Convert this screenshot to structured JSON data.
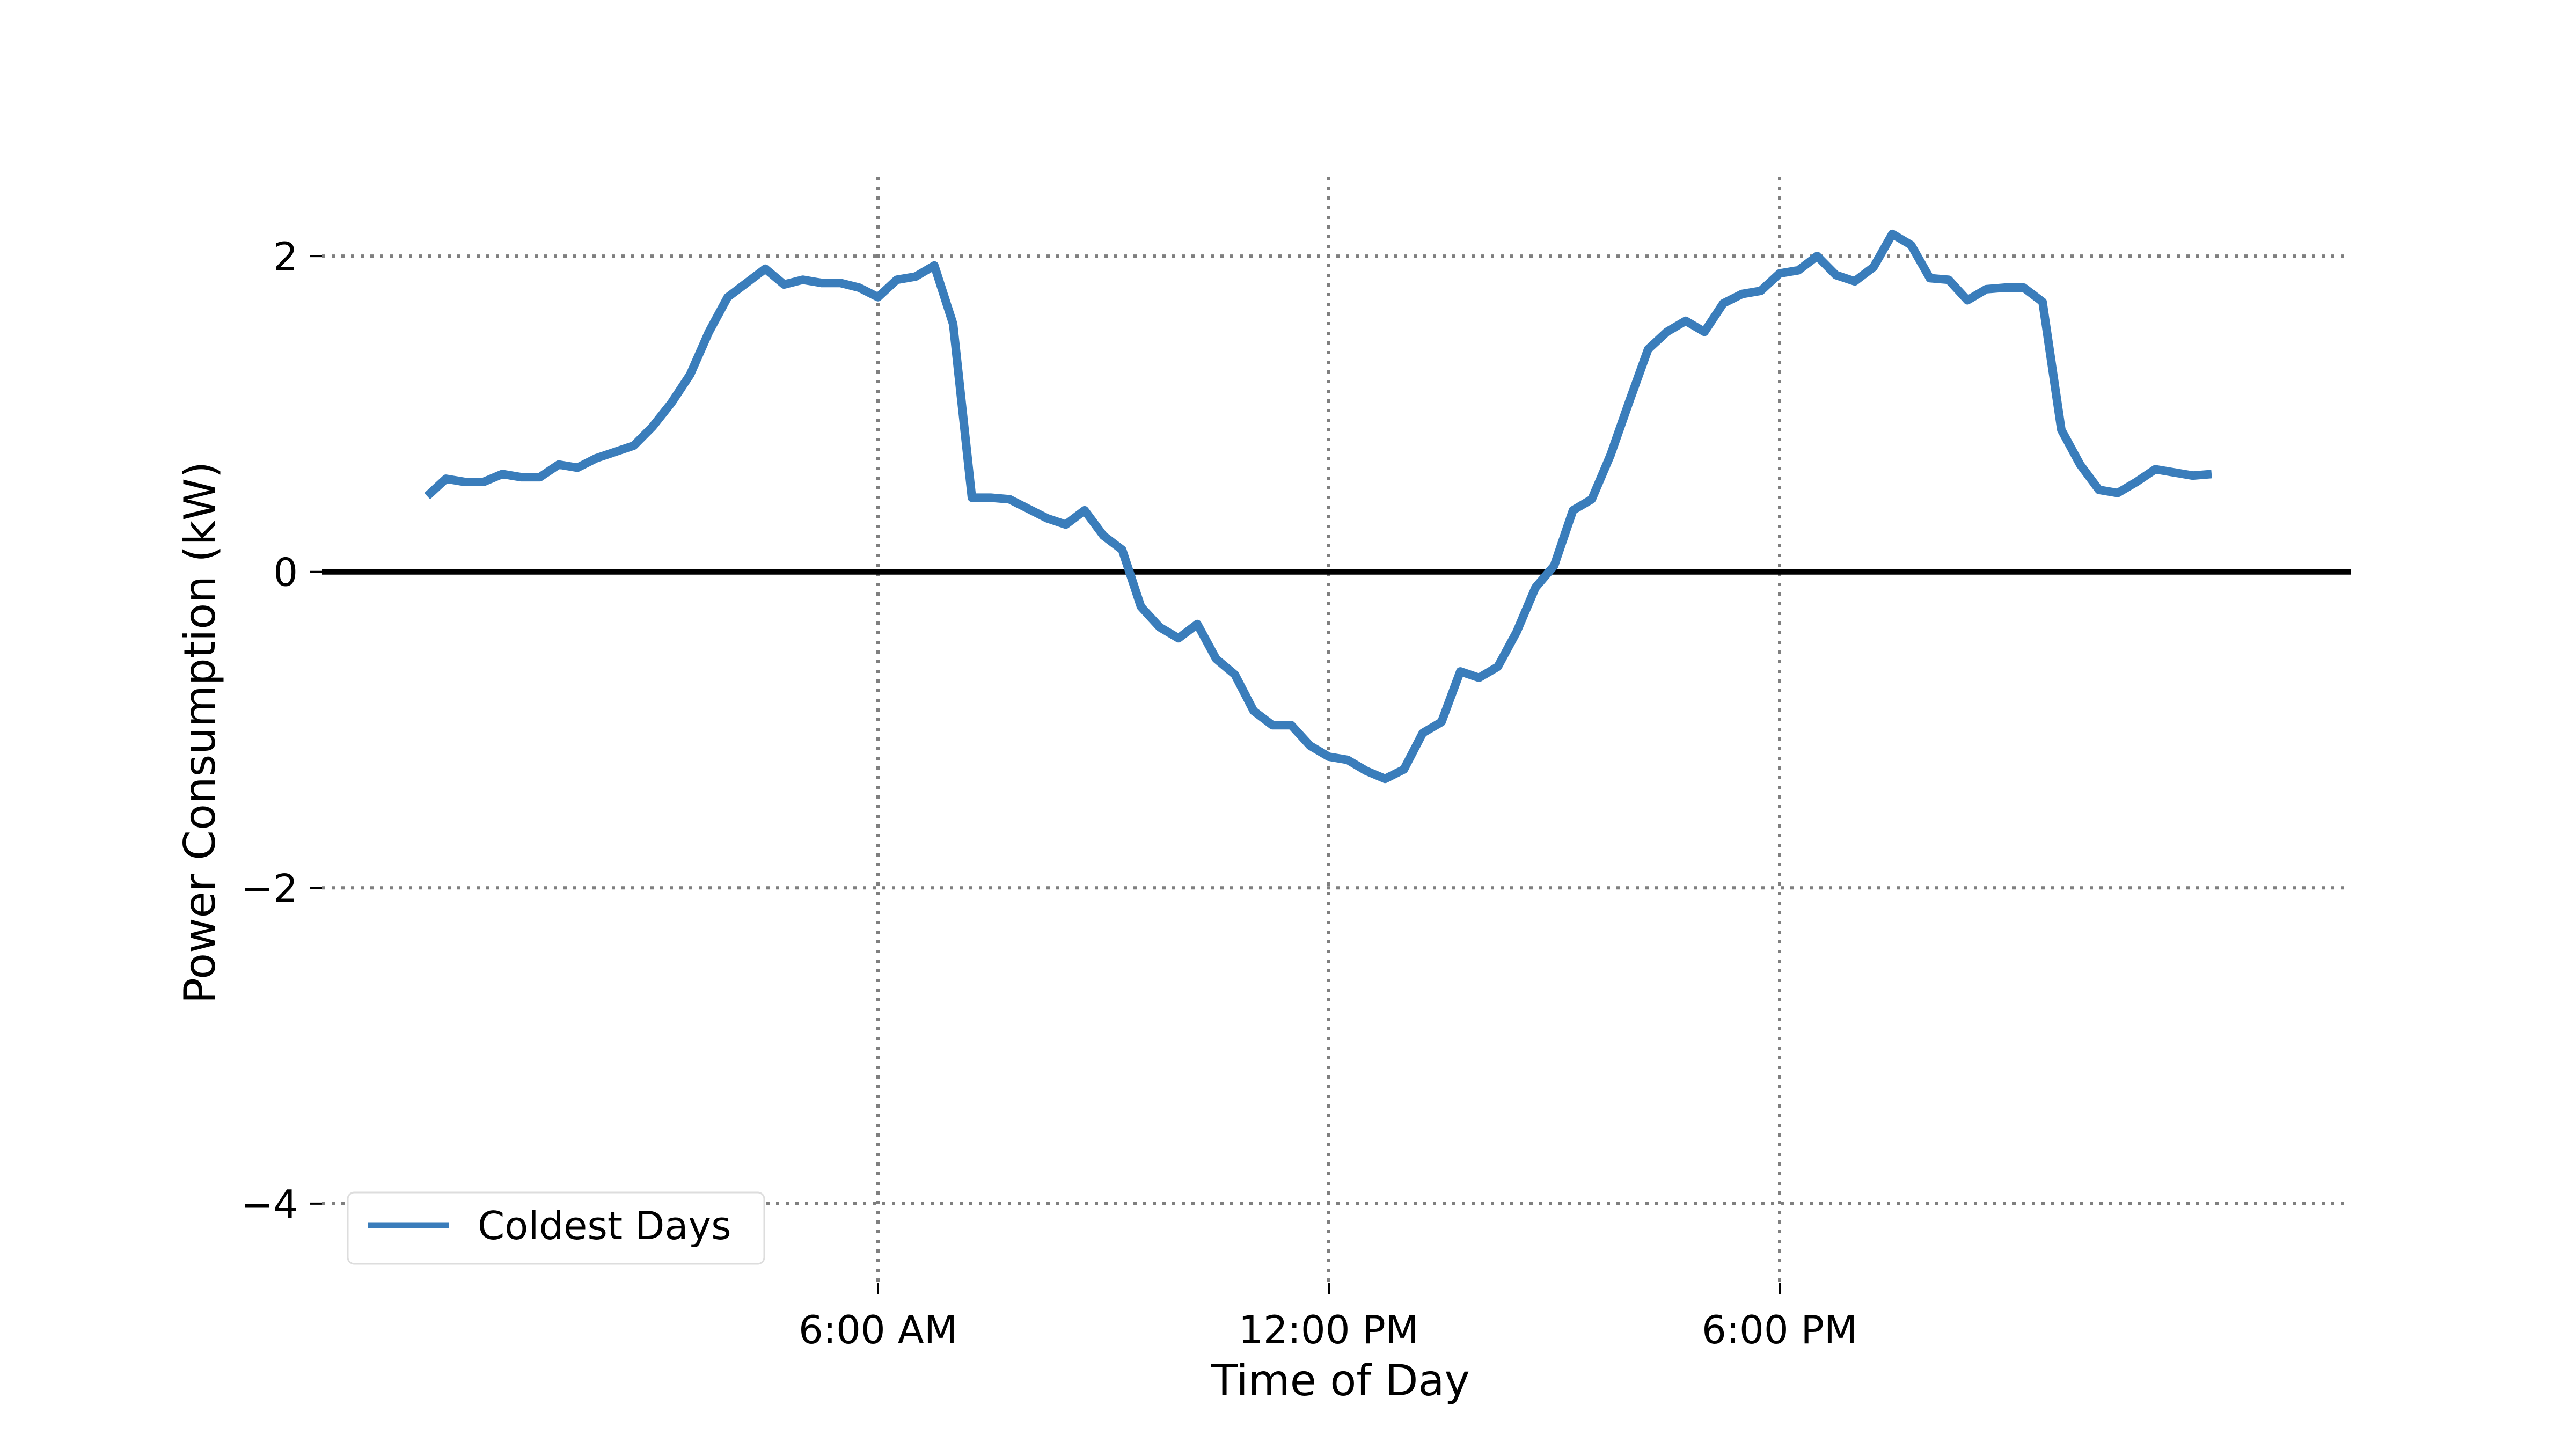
{
  "chart_data": {
    "type": "line",
    "xlabel": "Time of Day",
    "ylabel": "Power Consumption (kW)",
    "x_unit": "hours since midnight",
    "xlim": [
      -1.4,
      25.6
    ],
    "ylim": [
      -4.5,
      2.5
    ],
    "x_ticks": [
      {
        "value": 6,
        "label": "6:00 AM"
      },
      {
        "value": 12,
        "label": "12:00 PM"
      },
      {
        "value": 18,
        "label": "6:00 PM"
      }
    ],
    "y_ticks": [
      {
        "value": 2,
        "label": "2"
      },
      {
        "value": 0,
        "label": "0"
      },
      {
        "value": -2,
        "label": "−2"
      },
      {
        "value": -4,
        "label": "−4"
      }
    ],
    "grid": true,
    "grid_style": "dotted",
    "zero_line": true,
    "legend": {
      "position": "lower-left"
    },
    "series": [
      {
        "name": "Coldest Days",
        "color": "#3a7dbb",
        "x": [
          0,
          0.25,
          0.5,
          0.75,
          1,
          1.25,
          1.5,
          1.75,
          2,
          2.25,
          2.5,
          2.75,
          3,
          3.25,
          3.5,
          3.75,
          4,
          4.25,
          4.5,
          4.75,
          5,
          5.25,
          5.5,
          5.75,
          6,
          6.25,
          6.5,
          6.75,
          7,
          7.25,
          7.5,
          7.75,
          8,
          8.25,
          8.5,
          8.75,
          9,
          9.25,
          9.5,
          9.75,
          10,
          10.25,
          10.5,
          10.75,
          11,
          11.25,
          11.5,
          11.75,
          12,
          12.25,
          12.5,
          12.75,
          13,
          13.25,
          13.5,
          13.75,
          14,
          14.25,
          14.5,
          14.75,
          15,
          15.25,
          15.5,
          15.75,
          16,
          16.25,
          16.5,
          16.75,
          17,
          17.25,
          17.5,
          17.75,
          18,
          18.25,
          18.5,
          18.75,
          19,
          19.25,
          19.5,
          19.75,
          20,
          20.25,
          20.5,
          20.75,
          21,
          21.25,
          21.5,
          21.75,
          22,
          22.25,
          22.5,
          22.75,
          23,
          23.25,
          23.5,
          23.75
        ],
        "values": [
          0.48,
          0.59,
          0.57,
          0.57,
          0.62,
          0.6,
          0.6,
          0.68,
          0.66,
          0.72,
          0.76,
          0.8,
          0.92,
          1.07,
          1.25,
          1.52,
          1.74,
          1.83,
          1.92,
          1.82,
          1.85,
          1.83,
          1.83,
          1.8,
          1.74,
          1.85,
          1.87,
          1.94,
          1.57,
          0.47,
          0.47,
          0.46,
          0.4,
          0.34,
          0.3,
          0.39,
          0.23,
          0.14,
          -0.22,
          -0.35,
          -0.42,
          -0.33,
          -0.55,
          -0.65,
          -0.88,
          -0.97,
          -0.97,
          -1.1,
          -1.17,
          -1.19,
          -1.26,
          -1.31,
          -1.25,
          -1.02,
          -0.95,
          -0.63,
          -0.67,
          -0.6,
          -0.38,
          -0.1,
          0.04,
          0.39,
          0.46,
          0.74,
          1.08,
          1.41,
          1.52,
          1.59,
          1.52,
          1.7,
          1.76,
          1.78,
          1.89,
          1.91,
          2.0,
          1.88,
          1.84,
          1.93,
          2.14,
          2.07,
          1.86,
          1.85,
          1.72,
          1.79,
          1.8,
          1.8,
          1.71,
          0.9,
          0.68,
          0.52,
          0.5,
          0.57,
          0.65,
          0.63,
          0.61,
          0.62
        ]
      }
    ]
  }
}
